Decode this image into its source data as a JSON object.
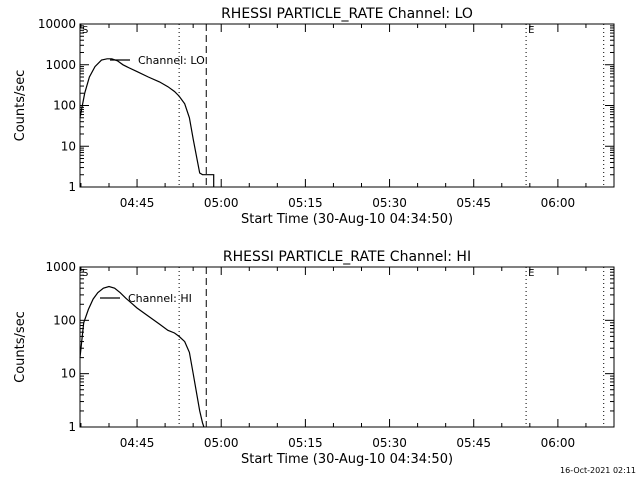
{
  "chart_data": [
    {
      "type": "line",
      "title": "RHESSI PARTICLE_RATE Channel: LO",
      "ylabel": "Counts/sec",
      "xlabel": "Start Time (30-Aug-10 04:34:50)",
      "yscale": "log",
      "ylim": [
        1,
        10000
      ],
      "y_ticks": [
        1,
        10,
        100,
        1000,
        10000
      ],
      "y_tick_labels": [
        "1",
        "10",
        "100",
        "1000",
        "10000"
      ],
      "xlim": [
        "04:34:50",
        "06:10:00"
      ],
      "x_ticks": [
        "04:45",
        "05:00",
        "05:15",
        "05:30",
        "05:45",
        "06:00"
      ],
      "x_tick_labels": [
        "04:45",
        "05:00",
        "05:15",
        "05:30",
        "05:45",
        "06:00"
      ],
      "legend": "top-left",
      "markers": [
        {
          "label": "S",
          "time": "04:34:50",
          "style": "dotted"
        },
        {
          "label": "",
          "time": "04:52:30",
          "style": "dotted"
        },
        {
          "label": "",
          "time": "04:57:20",
          "style": "dashed"
        },
        {
          "label": "E",
          "time": "05:54:20",
          "style": "dotted"
        },
        {
          "label": "",
          "time": "06:08:10",
          "style": "dotted"
        }
      ],
      "series": [
        {
          "name": "Channel: LO",
          "x": [
            "04:34:50",
            "04:35:40",
            "04:36:30",
            "04:37:30",
            "04:38:40",
            "04:39:40",
            "04:40:30",
            "04:41:30",
            "04:42:30",
            "04:43:30",
            "04:45:00",
            "04:47:00",
            "04:49:00",
            "04:50:30",
            "04:51:40",
            "04:52:30",
            "04:53:30",
            "04:54:20",
            "04:55:00",
            "04:55:40",
            "04:56:10",
            "04:56:40",
            "04:57:00",
            "04:57:20",
            "04:58:40",
            "04:58:40"
          ],
          "y": [
            50,
            200,
            500,
            900,
            1300,
            1400,
            1400,
            1250,
            1000,
            850,
            680,
            500,
            380,
            290,
            220,
            170,
            110,
            50,
            15,
            5,
            2.2,
            2,
            2,
            2,
            2,
            1
          ]
        }
      ]
    },
    {
      "type": "line",
      "title": "RHESSI PARTICLE_RATE Channel: HI",
      "ylabel": "Counts/sec",
      "xlabel": "Start Time (30-Aug-10 04:34:50)",
      "yscale": "log",
      "ylim": [
        1,
        1000
      ],
      "y_ticks": [
        1,
        10,
        100,
        1000
      ],
      "y_tick_labels": [
        "1",
        "10",
        "100",
        "1000"
      ],
      "xlim": [
        "04:34:50",
        "06:10:00"
      ],
      "x_ticks": [
        "04:45",
        "05:00",
        "05:15",
        "05:30",
        "05:45",
        "06:00"
      ],
      "x_tick_labels": [
        "04:45",
        "05:00",
        "05:15",
        "05:30",
        "05:45",
        "06:00"
      ],
      "legend": "top-left",
      "markers": [
        {
          "label": "S",
          "time": "04:34:50",
          "style": "dotted"
        },
        {
          "label": "",
          "time": "04:52:30",
          "style": "dotted"
        },
        {
          "label": "",
          "time": "04:57:20",
          "style": "dashed"
        },
        {
          "label": "E",
          "time": "05:54:20",
          "style": "dotted"
        },
        {
          "label": "",
          "time": "06:08:10",
          "style": "dotted"
        }
      ],
      "series": [
        {
          "name": "Channel: HI",
          "x": [
            "04:34:50",
            "04:35:30",
            "04:36:20",
            "04:37:10",
            "04:38:00",
            "04:39:00",
            "04:40:00",
            "04:41:00",
            "04:42:00",
            "04:43:00",
            "04:44:00",
            "04:45:00",
            "04:47:00",
            "04:49:00",
            "04:50:30",
            "04:51:40",
            "04:52:30",
            "04:53:30",
            "04:54:20",
            "04:55:00",
            "04:55:40",
            "04:56:10",
            "04:56:40",
            "04:56:55"
          ],
          "y": [
            20,
            90,
            160,
            250,
            330,
            400,
            430,
            400,
            330,
            260,
            210,
            170,
            120,
            85,
            65,
            58,
            50,
            40,
            25,
            10,
            4,
            2,
            1.2,
            1
          ]
        }
      ]
    }
  ],
  "timestamp": "16-Oct-2021 02:11",
  "colors": {
    "background": "#ffffff",
    "ink": "#000000"
  }
}
